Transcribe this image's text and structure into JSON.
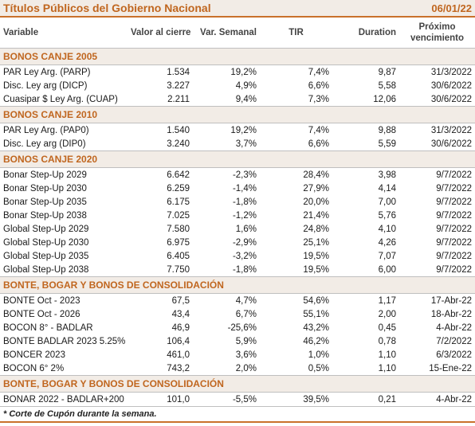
{
  "header": {
    "title": "Títulos Públicos del Gobierno Nacional",
    "date": "06/01/22"
  },
  "columns": {
    "name": "Variable",
    "price": "Valor al cierre",
    "weekly": "Var. Semanal",
    "tir": "TIR",
    "duration": "Duration",
    "maturity_line1": "Próximo",
    "maturity_line2": "vencimiento"
  },
  "sections": [
    {
      "title": "BONOS CANJE 2005",
      "rows": [
        [
          "PAR Ley Arg. (PARP)",
          "1.534",
          "19,2%",
          "7,4%",
          "9,87",
          "31/3/2022"
        ],
        [
          "Disc. Ley arg (DICP)",
          "3.227",
          "4,9%",
          "6,6%",
          "5,58",
          "30/6/2022"
        ],
        [
          "Cuasipar $ Ley Arg. (CUAP)",
          "2.211",
          "9,4%",
          "7,3%",
          "12,06",
          "30/6/2022"
        ]
      ]
    },
    {
      "title": "BONOS CANJE 2010",
      "rows": [
        [
          "PAR Ley Arg. (PAP0)",
          "1.540",
          "19,2%",
          "7,4%",
          "9,88",
          "31/3/2022"
        ],
        [
          "Disc. Ley arg (DIP0)",
          "3.240",
          "3,7%",
          "6,6%",
          "5,59",
          "30/6/2022"
        ]
      ]
    },
    {
      "title": "BONOS CANJE 2020",
      "rows": [
        [
          "Bonar Step-Up 2029",
          "6.642",
          "-2,3%",
          "28,4%",
          "3,98",
          "9/7/2022"
        ],
        [
          "Bonar Step-Up 2030",
          "6.259",
          "-1,4%",
          "27,9%",
          "4,14",
          "9/7/2022"
        ],
        [
          "Bonar Step-Up 2035",
          "6.175",
          "-1,8%",
          "20,0%",
          "7,00",
          "9/7/2022"
        ],
        [
          "Bonar Step-Up 2038",
          "7.025",
          "-1,2%",
          "21,4%",
          "5,76",
          "9/7/2022"
        ],
        [
          "Global Step-Up 2029",
          "7.580",
          "1,6%",
          "24,8%",
          "4,10",
          "9/7/2022"
        ],
        [
          "Global Step-Up 2030",
          "6.975",
          "-2,9%",
          "25,1%",
          "4,26",
          "9/7/2022"
        ],
        [
          "Global Step-Up 2035",
          "6.405",
          "-3,2%",
          "19,5%",
          "7,07",
          "9/7/2022"
        ],
        [
          "Global Step-Up 2038",
          "7.750",
          "-1,8%",
          "19,5%",
          "6,00",
          "9/7/2022"
        ]
      ]
    },
    {
      "title": "BONTE, BOGAR Y BONOS DE CONSOLIDACIÓN",
      "rows": [
        [
          "BONTE Oct - 2023",
          "67,5",
          "4,7%",
          "54,6%",
          "1,17",
          "17-Abr-22"
        ],
        [
          "BONTE Oct - 2026",
          "43,4",
          "6,7%",
          "55,1%",
          "2,00",
          "18-Abr-22"
        ],
        [
          "BOCON 8° - BADLAR",
          "46,9",
          "-25,6%",
          "43,2%",
          "0,45",
          "4-Abr-22"
        ],
        [
          "BONTE BADLAR 2023 5.25%",
          "106,4",
          "5,9%",
          "46,2%",
          "0,78",
          "7/2/2022"
        ],
        [
          "BONCER 2023",
          "461,0",
          "3,6%",
          "1,0%",
          "1,10",
          "6/3/2022"
        ],
        [
          "BOCON 6° 2%",
          "743,2",
          "2,0%",
          "0,5%",
          "1,10",
          "15-Ene-22"
        ]
      ]
    },
    {
      "title": "BONTE, BOGAR Y BONOS DE CONSOLIDACIÓN",
      "rows": [
        [
          "BONAR 2022 - BADLAR+200",
          "101,0",
          "-5,5%",
          "39,5%",
          "0,21",
          "4-Abr-22"
        ]
      ]
    }
  ],
  "footnote": "* Corte de Cupón durante la semana.",
  "colors": {
    "accent": "#c0661f",
    "band": "#f2ece6"
  }
}
